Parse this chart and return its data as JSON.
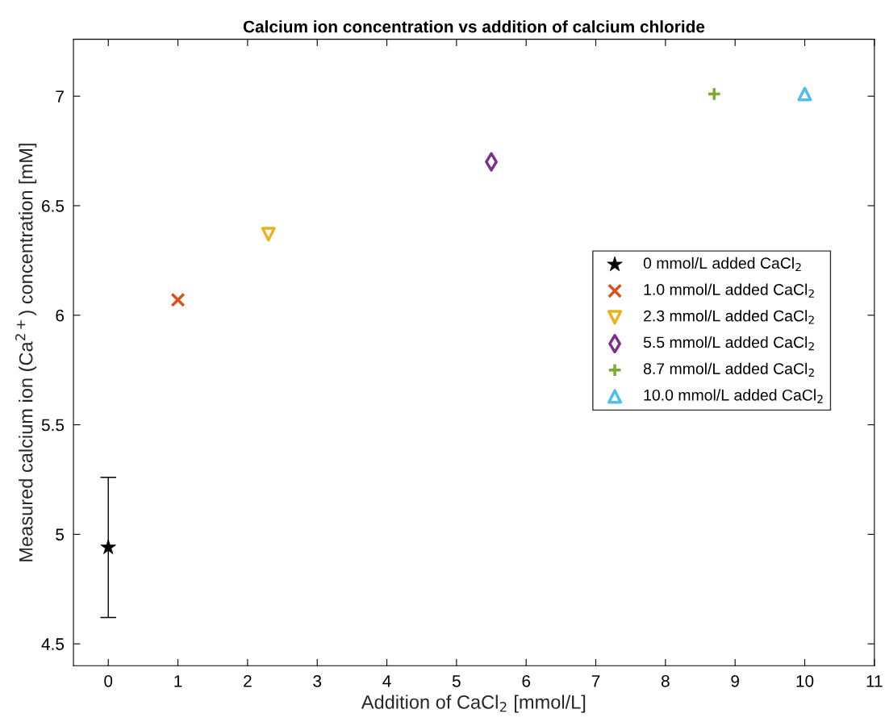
{
  "chart_data": {
    "type": "scatter",
    "title": "Calcium ion concentration vs addition of calcium chloride",
    "xlabel": "Addition of CaCl$_{2}$ [mmol/L]",
    "ylabel": "Measured calcium ion (Ca$^{2+}$) concentration [mM]",
    "xlim": [
      -0.5,
      11
    ],
    "xticks": [
      0,
      1,
      2,
      3,
      4,
      5,
      6,
      7,
      8,
      9,
      10,
      11
    ],
    "ylim": [
      4.4,
      7.26
    ],
    "yticks": [
      4.5,
      5,
      5.5,
      6,
      6.5,
      7
    ],
    "grid": false,
    "legend": "right",
    "series": [
      {
        "name": "0 mmol/L added CaCl$_{2}$",
        "color": "#000000",
        "marker": "star",
        "x": [
          0
        ],
        "values": [
          4.94
        ],
        "errors": [
          [
            4.62,
            5.26
          ]
        ]
      },
      {
        "name": "1.0 mmol/L added CaCl$_{2}$",
        "color": "#d95319",
        "marker": "cross",
        "x": [
          1
        ],
        "values": [
          6.07
        ]
      },
      {
        "name": "2.3 mmol/L added CaCl$_{2}$",
        "color": "#edb120",
        "marker": "triangle_down",
        "x": [
          2.3
        ],
        "values": [
          6.37
        ]
      },
      {
        "name": "5.5 mmol/L added CaCl$_{2}$",
        "color": "#7e2f8e",
        "marker": "diamond",
        "x": [
          5.5
        ],
        "values": [
          6.7
        ]
      },
      {
        "name": "8.7 mmol/L added CaCl$_{2}$",
        "color": "#77ac30",
        "marker": "plus",
        "x": [
          8.7
        ],
        "values": [
          7.01
        ]
      },
      {
        "name": "10.0 mmol/L added CaCl$_{2}$",
        "color": "#4dbeee",
        "marker": "triangle",
        "x": [
          10
        ],
        "values": [
          7.01
        ]
      }
    ]
  }
}
